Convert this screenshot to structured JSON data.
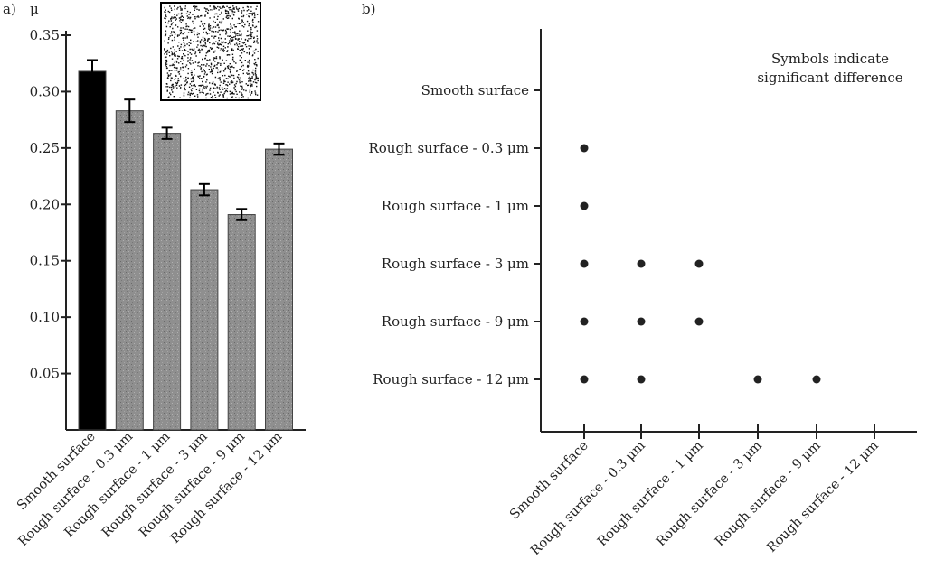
{
  "panel_a": {
    "tag": "a)",
    "ylabel": "μ"
  },
  "panel_b": {
    "tag": "b)",
    "note_line1": "Symbols indicate",
    "note_line2": "significant difference"
  },
  "colors": {
    "smooth": "#000000",
    "rough": "#8c8c8c",
    "axis": "#222222",
    "dot": "#222222"
  },
  "chart_data": [
    {
      "type": "bar",
      "categories": [
        "Smooth surface",
        "Rough surface - 0.3 μm",
        "Rough surface - 1 μm",
        "Rough surface - 3 μm",
        "Rough surface - 9 μm",
        "Rough surface - 12 μm"
      ],
      "values": [
        0.318,
        0.283,
        0.263,
        0.213,
        0.191,
        0.249
      ],
      "errors": [
        0.01,
        0.01,
        0.005,
        0.005,
        0.005,
        0.005
      ],
      "ylim": [
        0,
        0.35
      ],
      "yticks": [
        "0.05",
        "0.10",
        "0.15",
        "0.20",
        "0.25",
        "0.30",
        "0.35"
      ],
      "ylabel": "μ",
      "xlabel": ""
    },
    {
      "type": "scatter",
      "categories": [
        "Smooth surface",
        "Rough surface - 0.3 μm",
        "Rough surface - 1 μm",
        "Rough surface - 3 μm",
        "Rough surface - 9 μm",
        "Rough surface - 12 μm"
      ],
      "rows": [
        "Smooth surface",
        "Rough surface - 0.3 μm",
        "Rough surface - 1 μm",
        "Rough surface - 3 μm",
        "Rough surface - 9 μm",
        "Rough surface - 12 μm"
      ],
      "points": [
        [
          "Smooth surface",
          "Rough surface - 0.3 μm"
        ],
        [
          "Smooth surface",
          "Rough surface - 1 μm"
        ],
        [
          "Smooth surface",
          "Rough surface - 3 μm"
        ],
        [
          "Rough surface - 0.3 μm",
          "Rough surface - 3 μm"
        ],
        [
          "Rough surface - 1 μm",
          "Rough surface - 3 μm"
        ],
        [
          "Smooth surface",
          "Rough surface - 9 μm"
        ],
        [
          "Rough surface - 0.3 μm",
          "Rough surface - 9 μm"
        ],
        [
          "Rough surface - 1 μm",
          "Rough surface - 9 μm"
        ],
        [
          "Smooth surface",
          "Rough surface - 12 μm"
        ],
        [
          "Rough surface - 0.3 μm",
          "Rough surface - 12 μm"
        ],
        [
          "Rough surface - 3 μm",
          "Rough surface - 12 μm"
        ],
        [
          "Rough surface - 9 μm",
          "Rough surface - 12 μm"
        ]
      ]
    }
  ]
}
